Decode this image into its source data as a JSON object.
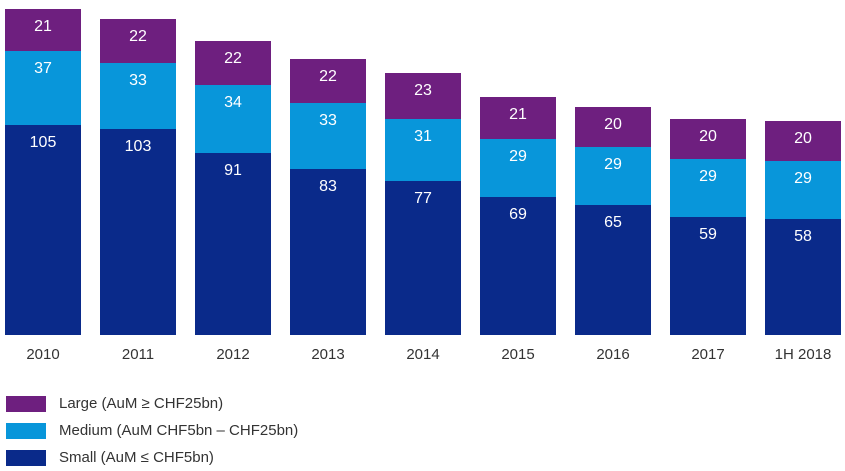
{
  "chart_data": {
    "type": "bar",
    "stacked": true,
    "categories": [
      "2010",
      "2011",
      "2012",
      "2013",
      "2014",
      "2015",
      "2016",
      "2017",
      "1H 2018"
    ],
    "series": [
      {
        "name": "Small (AuM ≤ CHF5bn)",
        "color": "#0a2a8a",
        "values": [
          105,
          103,
          91,
          83,
          77,
          69,
          65,
          59,
          58
        ]
      },
      {
        "name": "Medium (AuM CHF5bn – CHF25bn)",
        "color": "#0896da",
        "values": [
          37,
          33,
          34,
          33,
          31,
          29,
          29,
          29,
          29
        ]
      },
      {
        "name": "Large (AuM ≥ CHF25bn)",
        "color": "#6e1f7f",
        "values": [
          21,
          22,
          22,
          22,
          23,
          21,
          20,
          20,
          20
        ]
      }
    ],
    "legend_order": [
      2,
      1,
      0
    ],
    "legend_position": "bottom-left",
    "grid": false
  }
}
